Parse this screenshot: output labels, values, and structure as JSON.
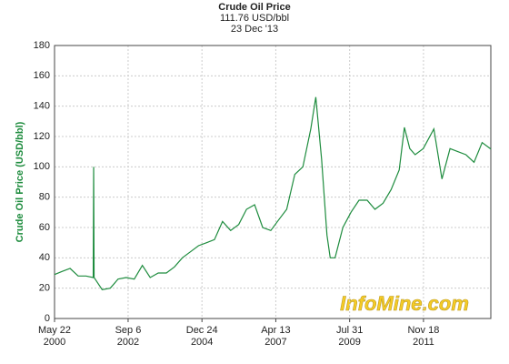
{
  "chart_data": {
    "type": "line",
    "title": "Crude Oil Price",
    "subtitle": "111.76 USD/bbl",
    "date": "23 Dec '13",
    "y_label": "Crude Oil Price (USD/bbl)",
    "watermark": "InfoMine.com",
    "grid": true,
    "xlim": [
      "2000-05-22",
      "2013-12-23"
    ],
    "ylim": [
      0,
      180
    ],
    "yticks": [
      0,
      20,
      40,
      60,
      80,
      100,
      120,
      140,
      160,
      180
    ],
    "xticks": [
      {
        "value": "2000-05-22",
        "label": "May 22",
        "year": "2000"
      },
      {
        "value": "2002-09-06",
        "label": "Sep 6",
        "year": "2002"
      },
      {
        "value": "2004-12-24",
        "label": "Dec 24",
        "year": "2004"
      },
      {
        "value": "2007-04-13",
        "label": "Apr 13",
        "year": "2007"
      },
      {
        "value": "2009-07-31",
        "label": "Jul 31",
        "year": "2009"
      },
      {
        "value": "2011-11-18",
        "label": "Nov 18",
        "year": "2011"
      }
    ],
    "series": [
      {
        "name": "Crude Oil",
        "color": "#1e8c3e",
        "x": [
          "2000-05-22",
          "2000-08-15",
          "2000-11-15",
          "2001-02-15",
          "2001-05-15",
          "2001-08-05",
          "2001-08-10",
          "2001-08-15",
          "2001-11-15",
          "2002-02-15",
          "2002-05-15",
          "2002-08-15",
          "2002-11-15",
          "2003-02-15",
          "2003-05-15",
          "2003-08-15",
          "2003-11-15",
          "2004-02-15",
          "2004-05-15",
          "2004-08-15",
          "2004-11-15",
          "2005-02-15",
          "2005-05-15",
          "2005-08-15",
          "2005-11-15",
          "2006-02-15",
          "2006-05-15",
          "2006-08-15",
          "2006-11-15",
          "2007-02-15",
          "2007-05-15",
          "2007-08-15",
          "2007-11-15",
          "2008-02-15",
          "2008-05-15",
          "2008-07-11",
          "2008-09-15",
          "2008-11-15",
          "2008-12-22",
          "2009-02-15",
          "2009-05-15",
          "2009-08-15",
          "2009-11-15",
          "2010-02-15",
          "2010-05-15",
          "2010-08-15",
          "2010-11-15",
          "2011-02-15",
          "2011-04-15",
          "2011-06-15",
          "2011-08-15",
          "2011-11-15",
          "2012-03-15",
          "2012-06-15",
          "2012-09-15",
          "2012-12-15",
          "2013-03-15",
          "2013-06-15",
          "2013-09-15",
          "2013-12-23"
        ],
        "values": [
          29,
          31,
          33,
          28,
          28,
          27,
          100,
          27,
          19,
          20,
          26,
          27,
          26,
          35,
          27,
          30,
          30,
          34,
          40,
          44,
          48,
          50,
          52,
          64,
          58,
          62,
          72,
          75,
          60,
          58,
          65,
          72,
          95,
          100,
          125,
          146,
          105,
          55,
          40,
          40,
          60,
          70,
          78,
          78,
          72,
          76,
          85,
          98,
          126,
          112,
          108,
          112,
          125,
          92,
          112,
          110,
          108,
          103,
          116,
          111.76
        ]
      }
    ]
  }
}
